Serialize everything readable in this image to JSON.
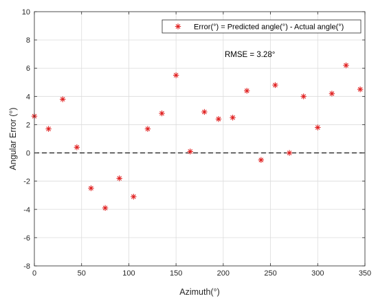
{
  "chart_data": {
    "type": "scatter",
    "xlabel": "Azimuth(°)",
    "ylabel": "Angular Error (°)",
    "xlim": [
      0,
      350
    ],
    "ylim": [
      -8,
      10
    ],
    "xticks": [
      0,
      50,
      100,
      150,
      200,
      250,
      300,
      350
    ],
    "yticks": [
      -8,
      -6,
      -4,
      -2,
      0,
      2,
      4,
      6,
      8,
      10
    ],
    "grid": true,
    "legend_position": "top-right",
    "annotation": "RMSE = 3.28°",
    "reference_line": {
      "y": 0,
      "style": "dashed",
      "color": "#000000"
    },
    "series": [
      {
        "name": "Error(°) = Predicted angle(°) - Actual angle(°)",
        "marker": "asterisk",
        "color": "#e02020",
        "x": [
          0,
          15,
          30,
          45,
          60,
          75,
          90,
          105,
          120,
          135,
          150,
          165,
          180,
          195,
          210,
          225,
          240,
          255,
          270,
          285,
          300,
          315,
          330,
          345
        ],
        "y": [
          2.6,
          1.7,
          3.8,
          0.4,
          -2.5,
          -3.9,
          -1.8,
          -3.1,
          1.7,
          2.8,
          5.5,
          0.1,
          2.9,
          2.4,
          2.5,
          4.4,
          -0.5,
          4.8,
          0.0,
          4.0,
          1.8,
          4.2,
          6.2,
          4.5
        ]
      }
    ]
  }
}
